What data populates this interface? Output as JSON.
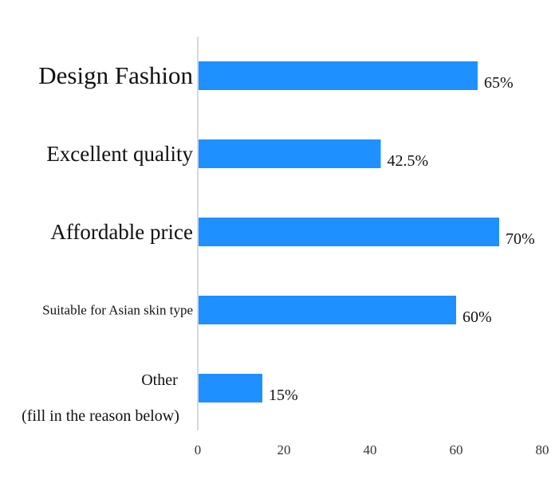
{
  "chart_data": {
    "type": "bar",
    "orientation": "horizontal",
    "categories": [
      "Design Fashion",
      "Excellent quality",
      "Affordable price",
      "Suitable for Asian skin type",
      "Other\n(fill in the reason below)"
    ],
    "values": [
      65,
      42.5,
      70,
      60,
      15
    ],
    "value_labels": [
      "65%",
      "42.5%",
      "70%",
      "60%",
      "15%"
    ],
    "xticks": [
      "0",
      "20",
      "40",
      "60",
      "80"
    ],
    "xlim": [
      0,
      80
    ],
    "title": "",
    "xlabel": "",
    "ylabel": "",
    "grid": false,
    "legend": "none",
    "bar_color": "#1e90ff",
    "axis_color": "#c8cbd6"
  }
}
